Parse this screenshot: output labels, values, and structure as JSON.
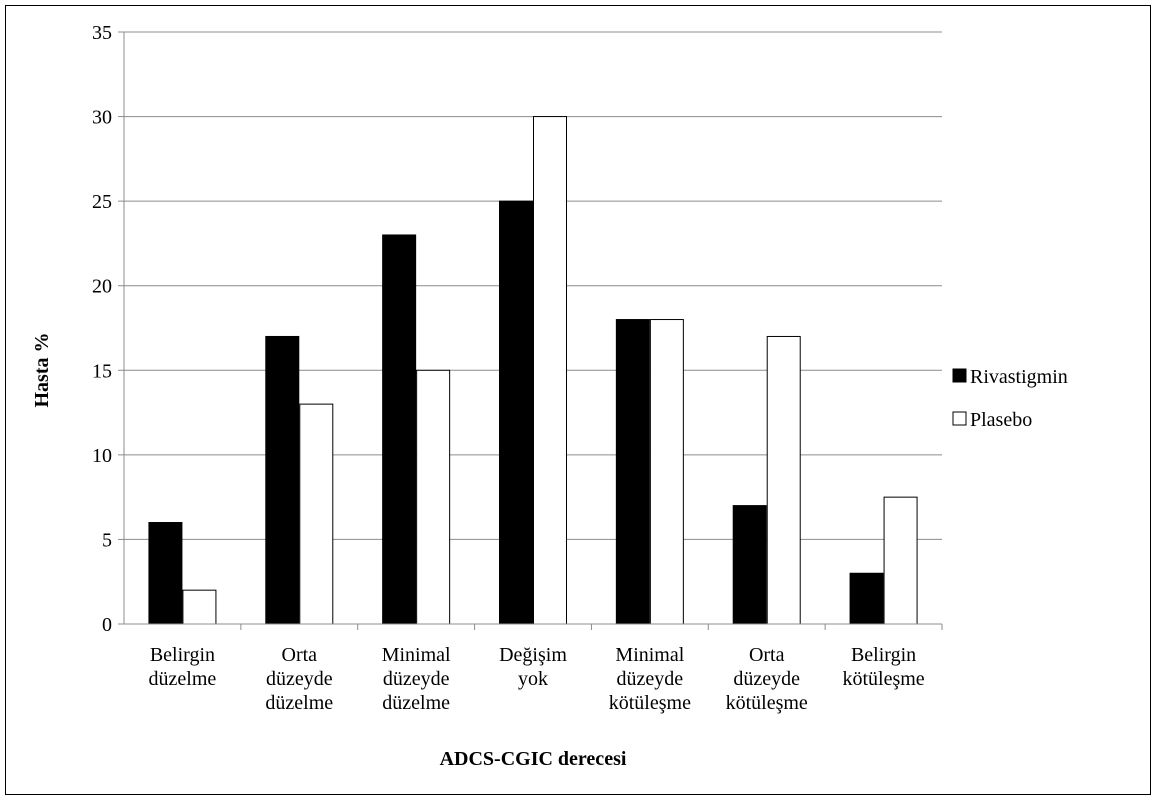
{
  "chart_data": {
    "type": "bar",
    "title": "",
    "xlabel": "ADCS-CGIC derecesi",
    "ylabel": "Hasta  %",
    "ylim": [
      0,
      35
    ],
    "yticks": [
      0,
      5,
      10,
      15,
      20,
      25,
      30,
      35
    ],
    "grid": true,
    "legend_position": "right",
    "categories": [
      [
        "Belirgin",
        "düzelme"
      ],
      [
        "Orta",
        "düzeyde",
        "düzelme"
      ],
      [
        "Minimal",
        "düzeyde",
        "düzelme"
      ],
      [
        "Değişim",
        "yok"
      ],
      [
        "Minimal",
        "düzeyde",
        "kötüleşme"
      ],
      [
        "Orta",
        "düzeyde",
        "kötüleşme"
      ],
      [
        "Belirgin",
        "kötüleşme"
      ]
    ],
    "series": [
      {
        "name": "Rivastigmin",
        "color": "#000000",
        "values": [
          6,
          17,
          23,
          25,
          18,
          7,
          3
        ]
      },
      {
        "name": "Plasebo",
        "color": "#ffffff",
        "values": [
          2,
          13,
          15,
          30,
          18,
          17,
          7.5
        ]
      }
    ]
  }
}
